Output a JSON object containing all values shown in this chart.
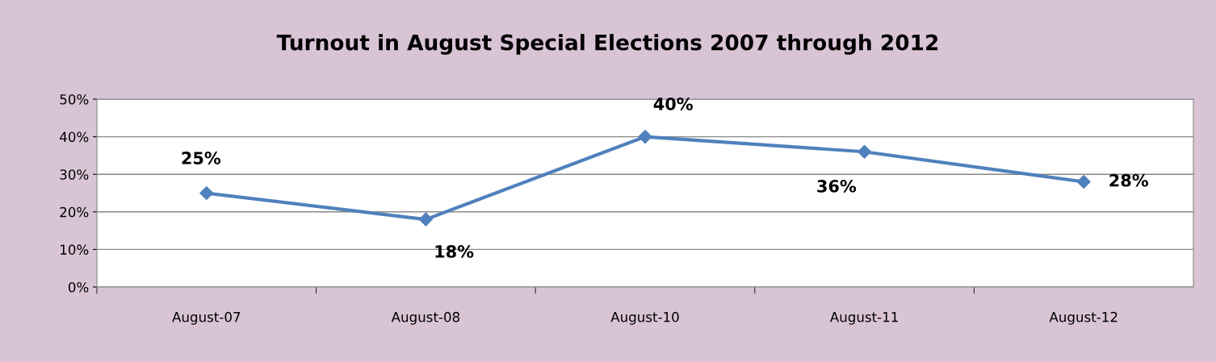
{
  "chart_data": {
    "type": "line",
    "title": "Turnout in August Special Elections 2007 through 2012",
    "categories": [
      "August-07",
      "August-08",
      "August-10",
      "August-11",
      "August-12"
    ],
    "series": [
      {
        "color": "#4f81bd",
        "values": [
          25,
          18,
          40,
          36,
          28
        ],
        "value_labels": [
          "25%",
          "18%",
          "40%",
          "36%",
          "28%"
        ]
      }
    ],
    "ylim": [
      0,
      50
    ],
    "yticks": [
      {
        "value": 0,
        "label": "0%"
      },
      {
        "value": 10,
        "label": "10%"
      },
      {
        "value": 20,
        "label": "20%"
      },
      {
        "value": 30,
        "label": "30%"
      },
      {
        "value": 40,
        "label": "40%"
      },
      {
        "value": 50,
        "label": "50%"
      }
    ],
    "grid": "y",
    "marker": "diamond",
    "line_style": "solid"
  }
}
